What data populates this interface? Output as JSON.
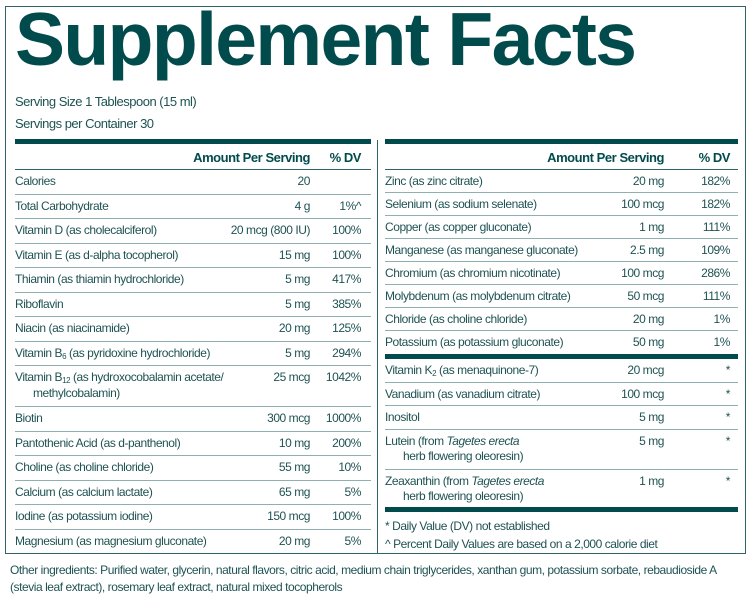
{
  "title": "Supplement Facts",
  "serving_size": "Serving Size 1 Tablespoon (15 ml)",
  "servings_per_container": "Servings per Container 30",
  "left_table": {
    "header": {
      "amount": "Amount Per Serving",
      "dv": "% DV"
    },
    "rows": [
      {
        "name": [
          {
            "t": "Calories"
          }
        ],
        "amount": "20",
        "dv": ""
      },
      {
        "name": [
          {
            "t": "Total Carbohydrate"
          }
        ],
        "amount": "4 g",
        "dv": "1%^"
      },
      {
        "name": [
          {
            "t": "Vitamin D (as cholecalciferol)"
          }
        ],
        "amount": "20 mcg (800 IU)",
        "dv": "100%"
      },
      {
        "name": [
          {
            "t": "Vitamin E (as d-alpha tocopherol)"
          }
        ],
        "amount": "15 mg",
        "dv": "100%"
      },
      {
        "name": [
          {
            "t": "Thiamin (as thiamin hydrochloride)"
          }
        ],
        "amount": "5 mg",
        "dv": "417%"
      },
      {
        "name": [
          {
            "t": "Riboflavin"
          }
        ],
        "amount": "5 mg",
        "dv": "385%"
      },
      {
        "name": [
          {
            "t": "Niacin (as niacinamide)"
          }
        ],
        "amount": "20 mg",
        "dv": "125%"
      },
      {
        "name": [
          {
            "t": "Vitamin B"
          },
          {
            "t": "6",
            "sub": true
          },
          {
            "t": " (as pyridoxine hydrochloride)"
          }
        ],
        "amount": "5 mg",
        "dv": "294%"
      },
      {
        "name": [
          {
            "t": "Vitamin B"
          },
          {
            "t": "12",
            "sub": true
          },
          {
            "t": " (as hydroxocobalamin acetate/"
          }
        ],
        "line2": "methylcobalamin)",
        "amount": "25 mcg",
        "dv": "1042%"
      },
      {
        "name": [
          {
            "t": "Biotin"
          }
        ],
        "amount": "300 mcg",
        "dv": "1000%"
      },
      {
        "name": [
          {
            "t": "Pantothenic Acid (as d-panthenol)"
          }
        ],
        "amount": "10 mg",
        "dv": "200%"
      },
      {
        "name": [
          {
            "t": "Choline (as choline chloride)"
          }
        ],
        "amount": "55 mg",
        "dv": "10%"
      },
      {
        "name": [
          {
            "t": "Calcium (as calcium lactate)"
          }
        ],
        "amount": "65 mg",
        "dv": "5%"
      },
      {
        "name": [
          {
            "t": "Iodine (as potassium iodine)"
          }
        ],
        "amount": "150 mcg",
        "dv": "100%"
      },
      {
        "name": [
          {
            "t": "Magnesium (as magnesium gluconate)"
          }
        ],
        "amount": "20 mg",
        "dv": "5%"
      }
    ]
  },
  "right_table": {
    "header": {
      "amount": "Amount Per Serving",
      "dv": "% DV"
    },
    "rows": [
      {
        "name": [
          {
            "t": "Zinc (as zinc citrate)"
          }
        ],
        "amount": "20 mg",
        "dv": "182%"
      },
      {
        "name": [
          {
            "t": "Selenium (as sodium selenate)"
          }
        ],
        "amount": "100 mcg",
        "dv": "182%"
      },
      {
        "name": [
          {
            "t": "Copper (as copper gluconate)"
          }
        ],
        "amount": "1 mg",
        "dv": "111%"
      },
      {
        "name": [
          {
            "t": "Manganese (as manganese gluconate)"
          }
        ],
        "amount": "2.5 mg",
        "dv": "109%"
      },
      {
        "name": [
          {
            "t": "Chromium (as chromium nicotinate)"
          }
        ],
        "amount": "100 mcg",
        "dv": "286%"
      },
      {
        "name": [
          {
            "t": "Molybdenum (as molybdenum citrate)"
          }
        ],
        "amount": "50 mcg",
        "dv": "111%"
      },
      {
        "name": [
          {
            "t": "Chloride (as choline chloride)"
          }
        ],
        "amount": "20 mg",
        "dv": "1%"
      },
      {
        "name": [
          {
            "t": "Potassium (as potassium gluconate)"
          }
        ],
        "amount": "50 mg",
        "dv": "1%"
      }
    ],
    "rows2": [
      {
        "name": [
          {
            "t": "Vitamin K"
          },
          {
            "t": "2",
            "sub": true
          },
          {
            "t": " (as menaquinone-7)"
          }
        ],
        "amount": "20 mcg",
        "dv": "*"
      },
      {
        "name": [
          {
            "t": "Vanadium (as vanadium citrate)"
          }
        ],
        "amount": "100 mcg",
        "dv": "*"
      },
      {
        "name": [
          {
            "t": "Inositol"
          }
        ],
        "amount": "5 mg",
        "dv": "*"
      },
      {
        "name": [
          {
            "t": "Lutein (from "
          },
          {
            "t": "Tagetes erecta",
            "i": true
          }
        ],
        "line2": "herb flowering oleoresin)",
        "amount": "5 mg",
        "dv": "*"
      },
      {
        "name": [
          {
            "t": "Zeaxanthin (from "
          },
          {
            "t": "Tagetes erecta",
            "i": true
          }
        ],
        "line2": "herb flowering oleoresin)",
        "amount": "1 mg",
        "dv": "*"
      }
    ]
  },
  "footnotes": [
    "* Daily Value (DV) not established",
    "^ Percent Daily Values are based on a 2,000 calorie diet"
  ],
  "other_ingredients": "Other ingredients: Purified water, glycerin, natural flavors, citric acid, medium chain triglycerides, xanthan gum, potassium sorbate, rebaudioside A (stevia leaf extract), rosemary leaf extract, natural mixed tocopherols",
  "colors": {
    "brand": "#024b4d",
    "text": "#1f5253",
    "divider": "#8fb0b0"
  }
}
